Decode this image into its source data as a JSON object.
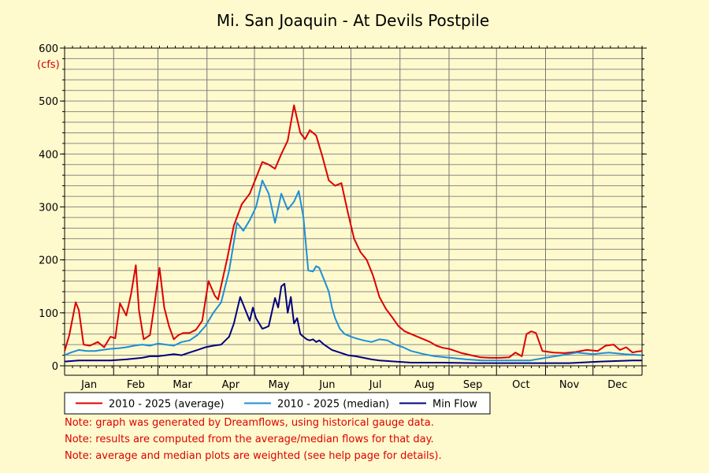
{
  "chart_data": {
    "type": "line",
    "title": "Mi. San Joaquin - At Devils Postpile",
    "y_unit": "(cfs)",
    "ylim": [
      0,
      600
    ],
    "y_ticks": [
      0,
      100,
      200,
      300,
      400,
      500,
      600
    ],
    "xlim": [
      1,
      366
    ],
    "categories": [
      "Jan",
      "Feb",
      "Mar",
      "Apr",
      "May",
      "Jun",
      "Jul",
      "Aug",
      "Sep",
      "Oct",
      "Nov",
      "Dec"
    ],
    "grid": true,
    "legend_placement": "bottom",
    "series": [
      {
        "name": "2010 - 2025 (average)",
        "color": "#dd0000",
        "x": [
          1,
          4,
          8,
          10,
          13,
          17,
          22,
          26,
          30,
          33,
          36,
          40,
          43,
          46,
          48,
          51,
          55,
          58,
          61,
          64,
          67,
          70,
          73,
          76,
          80,
          84,
          88,
          92,
          96,
          98,
          101,
          104,
          108,
          113,
          118,
          122,
          126,
          130,
          134,
          138,
          142,
          146,
          150,
          153,
          156,
          160,
          164,
          168,
          172,
          176,
          180,
          184,
          188,
          192,
          196,
          200,
          204,
          208,
          212,
          216,
          220,
          224,
          228,
          232,
          236,
          240,
          244,
          248,
          252,
          258,
          264,
          270,
          276,
          282,
          286,
          290,
          293,
          296,
          299,
          303,
          310,
          317,
          324,
          331,
          338,
          343,
          348,
          352,
          356,
          360,
          363,
          366
        ],
        "y": [
          28,
          58,
          120,
          105,
          40,
          38,
          45,
          35,
          55,
          52,
          118,
          95,
          135,
          190,
          105,
          50,
          58,
          120,
          185,
          110,
          75,
          50,
          58,
          62,
          62,
          68,
          85,
          160,
          132,
          125,
          165,
          205,
          265,
          305,
          325,
          355,
          385,
          380,
          372,
          400,
          425,
          492,
          440,
          428,
          445,
          435,
          395,
          350,
          340,
          345,
          290,
          240,
          215,
          200,
          170,
          130,
          108,
          92,
          75,
          65,
          60,
          55,
          50,
          45,
          38,
          34,
          32,
          28,
          24,
          20,
          16,
          15,
          15,
          16,
          25,
          18,
          60,
          65,
          62,
          28,
          25,
          24,
          26,
          30,
          28,
          38,
          40,
          30,
          35,
          25,
          27,
          28
        ]
      },
      {
        "name": "2010 - 2025 (median)",
        "color": "#1e8fd6",
        "x": [
          1,
          5,
          10,
          15,
          20,
          25,
          30,
          35,
          40,
          45,
          50,
          55,
          60,
          65,
          70,
          75,
          80,
          85,
          90,
          95,
          100,
          105,
          110,
          114,
          118,
          122,
          126,
          130,
          134,
          138,
          142,
          146,
          149,
          152,
          155,
          158,
          160,
          162,
          164,
          166,
          168,
          170,
          172,
          175,
          178,
          182,
          185,
          190,
          195,
          200,
          205,
          210,
          215,
          220,
          228,
          235,
          245,
          255,
          265,
          275,
          285,
          295,
          305,
          315,
          325,
          335,
          345,
          355,
          366
        ],
        "y": [
          20,
          25,
          30,
          28,
          28,
          30,
          32,
          33,
          35,
          38,
          40,
          38,
          42,
          40,
          38,
          45,
          48,
          58,
          75,
          100,
          120,
          180,
          270,
          255,
          275,
          300,
          350,
          325,
          270,
          325,
          295,
          310,
          330,
          280,
          180,
          178,
          188,
          185,
          170,
          155,
          140,
          110,
          90,
          70,
          60,
          55,
          52,
          48,
          45,
          50,
          48,
          40,
          35,
          28,
          22,
          18,
          15,
          12,
          10,
          10,
          10,
          10,
          15,
          20,
          25,
          22,
          25,
          22,
          20
        ]
      },
      {
        "name": "Min Flow",
        "color": "#000080",
        "x": [
          1,
          10,
          20,
          30,
          40,
          50,
          55,
          60,
          65,
          70,
          75,
          80,
          85,
          90,
          95,
          100,
          105,
          108,
          112,
          118,
          120,
          122,
          124,
          126,
          128,
          130,
          134,
          136,
          138,
          140,
          142,
          144,
          146,
          148,
          150,
          152,
          154,
          156,
          158,
          160,
          162,
          165,
          170,
          175,
          180,
          185,
          190,
          195,
          200,
          210,
          220,
          240,
          260,
          280,
          300,
          320,
          340,
          360,
          366
        ],
        "y": [
          8,
          10,
          10,
          10,
          12,
          15,
          18,
          18,
          20,
          22,
          20,
          25,
          30,
          35,
          38,
          40,
          55,
          80,
          130,
          85,
          110,
          90,
          80,
          70,
          72,
          75,
          128,
          110,
          150,
          155,
          100,
          130,
          80,
          90,
          60,
          55,
          50,
          48,
          50,
          45,
          48,
          40,
          30,
          25,
          20,
          18,
          15,
          12,
          10,
          8,
          6,
          6,
          5,
          5,
          5,
          5,
          8,
          10,
          10
        ]
      }
    ]
  },
  "notes": [
    "Note: graph was generated by Dreamflows, using historical gauge data.",
    "Note: results are computed from the average/median flows for that day.",
    "Note: average and median plots are weighted (see help page for details)."
  ]
}
